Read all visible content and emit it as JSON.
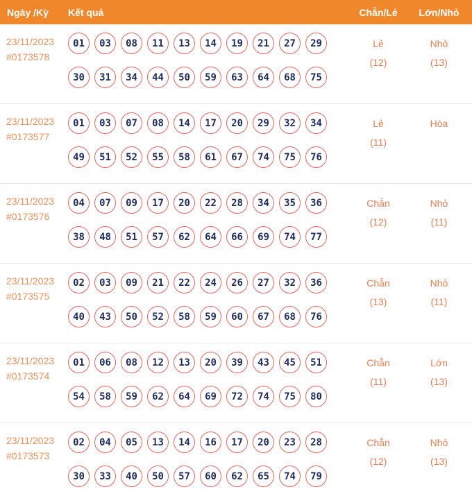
{
  "header": {
    "col_date": "Ngày /Kỳ",
    "col_result": "Kết quả",
    "col_even_odd": "Chẵn/Lẻ",
    "col_big_small": "Lớn/Nhỏ"
  },
  "colors": {
    "header_bg": "#F0882B",
    "header_text": "#ffffff",
    "date_text": "#EF9159",
    "result_text": "#ED7D4E",
    "ball_border": "#E9655B",
    "ball_text": "#212D5E",
    "divider": "#e9e9e9"
  },
  "rows": [
    {
      "date": "23/11/2023",
      "draw_id": "#0173578",
      "numbers_line1": [
        "01",
        "03",
        "08",
        "11",
        "13",
        "14",
        "19",
        "21",
        "27",
        "29"
      ],
      "numbers_line2": [
        "30",
        "31",
        "34",
        "44",
        "50",
        "59",
        "63",
        "64",
        "68",
        "75"
      ],
      "even_odd": "Lẻ",
      "even_odd_count": "(12)",
      "big_small": "Nhỏ",
      "big_small_count": "(13)"
    },
    {
      "date": "23/11/2023",
      "draw_id": "#0173577",
      "numbers_line1": [
        "01",
        "03",
        "07",
        "08",
        "14",
        "17",
        "20",
        "29",
        "32",
        "34"
      ],
      "numbers_line2": [
        "49",
        "51",
        "52",
        "55",
        "58",
        "61",
        "67",
        "74",
        "75",
        "76"
      ],
      "even_odd": "Lẻ",
      "even_odd_count": "(11)",
      "big_small": "Hòa",
      "big_small_count": ""
    },
    {
      "date": "23/11/2023",
      "draw_id": "#0173576",
      "numbers_line1": [
        "04",
        "07",
        "09",
        "17",
        "20",
        "22",
        "28",
        "34",
        "35",
        "36"
      ],
      "numbers_line2": [
        "38",
        "48",
        "51",
        "57",
        "62",
        "64",
        "66",
        "69",
        "74",
        "77"
      ],
      "even_odd": "Chẵn",
      "even_odd_count": "(12)",
      "big_small": "Nhỏ",
      "big_small_count": "(11)"
    },
    {
      "date": "23/11/2023",
      "draw_id": "#0173575",
      "numbers_line1": [
        "02",
        "03",
        "09",
        "21",
        "22",
        "24",
        "26",
        "27",
        "32",
        "36"
      ],
      "numbers_line2": [
        "40",
        "43",
        "50",
        "52",
        "58",
        "59",
        "60",
        "67",
        "68",
        "76"
      ],
      "even_odd": "Chẵn",
      "even_odd_count": "(13)",
      "big_small": "Nhỏ",
      "big_small_count": "(11)"
    },
    {
      "date": "23/11/2023",
      "draw_id": "#0173574",
      "numbers_line1": [
        "01",
        "06",
        "08",
        "12",
        "13",
        "20",
        "39",
        "43",
        "45",
        "51"
      ],
      "numbers_line2": [
        "54",
        "58",
        "59",
        "62",
        "64",
        "69",
        "72",
        "74",
        "75",
        "80"
      ],
      "even_odd": "Chẵn",
      "even_odd_count": "(11)",
      "big_small": "Lớn",
      "big_small_count": "(13)"
    },
    {
      "date": "23/11/2023",
      "draw_id": "#0173573",
      "numbers_line1": [
        "02",
        "04",
        "05",
        "13",
        "14",
        "16",
        "17",
        "20",
        "23",
        "28"
      ],
      "numbers_line2": [
        "30",
        "33",
        "40",
        "50",
        "57",
        "60",
        "62",
        "65",
        "74",
        "79"
      ],
      "even_odd": "Chẵn",
      "even_odd_count": "(12)",
      "big_small": "Nhỏ",
      "big_small_count": "(13)"
    }
  ]
}
